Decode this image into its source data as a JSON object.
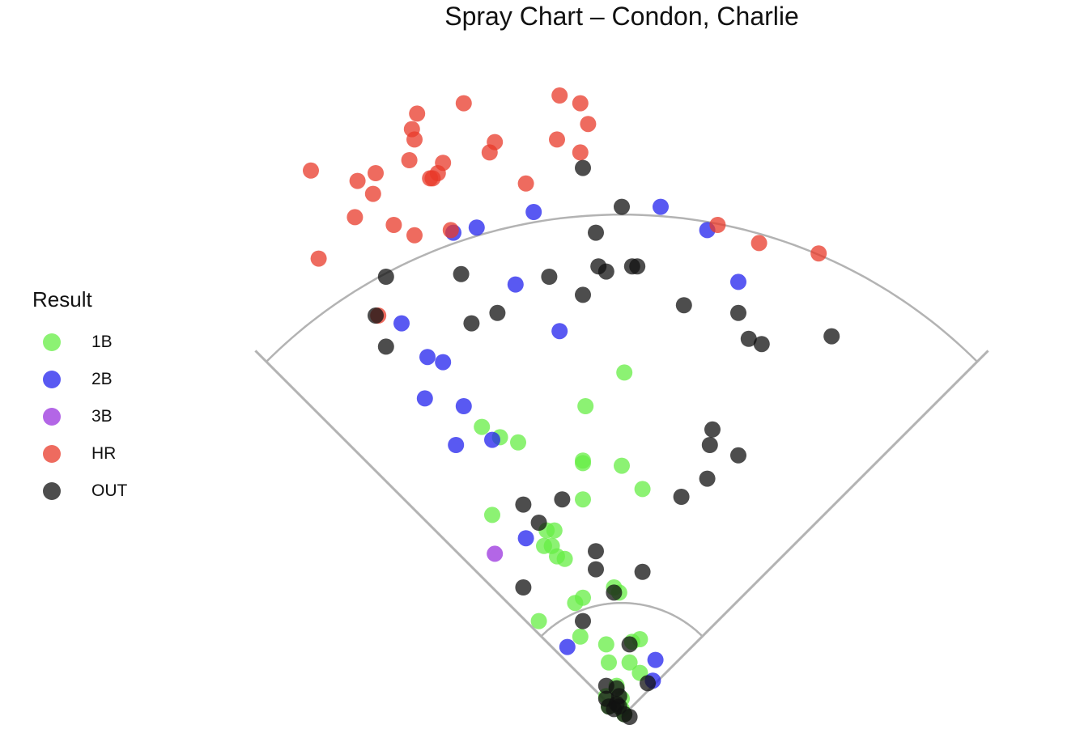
{
  "chart_data": {
    "type": "scatter",
    "title": "Spray Chart – Condon, Charlie",
    "legend": {
      "title": "Result",
      "placement": "left",
      "entries": [
        {
          "name": "1B",
          "color": "#66ee44"
        },
        {
          "name": "2B",
          "color": "#2222ee"
        },
        {
          "name": "3B",
          "color": "#9933dd"
        },
        {
          "name": "HR",
          "color": "#e83a2a"
        },
        {
          "name": "OUT",
          "color": "#111111"
        }
      ]
    },
    "x_range": [
      -140,
      140
    ],
    "y_range": [
      0,
      240
    ],
    "grid": false,
    "field": {
      "foul_line_length": 200,
      "outfield_arc_radius": 194,
      "infield_arc_radius": 44
    },
    "series": [
      {
        "name": "1B",
        "color": "#66ee44",
        "points": [
          [
            1,
            133
          ],
          [
            -14,
            120
          ],
          [
            -54,
            112
          ],
          [
            -47,
            108
          ],
          [
            -40,
            106
          ],
          [
            0,
            97
          ],
          [
            -15,
            99
          ],
          [
            -15,
            98
          ],
          [
            8,
            88
          ],
          [
            -15,
            84
          ],
          [
            -50,
            78
          ],
          [
            -29,
            72
          ],
          [
            -26,
            72
          ],
          [
            -30,
            66
          ],
          [
            -27,
            66
          ],
          [
            -25,
            62
          ],
          [
            -22,
            61
          ],
          [
            -3,
            50
          ],
          [
            -1,
            48
          ],
          [
            -15,
            46
          ],
          [
            -18,
            44
          ],
          [
            -32,
            37
          ],
          [
            -16,
            31
          ],
          [
            -6,
            28
          ],
          [
            7,
            30
          ],
          [
            4,
            29
          ],
          [
            -5,
            21
          ],
          [
            3,
            21
          ],
          [
            7,
            17
          ],
          [
            -2,
            12
          ],
          [
            -6,
            8
          ],
          [
            0,
            7
          ],
          [
            -5,
            4
          ],
          [
            0,
            3
          ],
          [
            1,
            1
          ]
        ]
      },
      {
        "name": "2B",
        "color": "#2222ee",
        "points": [
          [
            -34,
            195
          ],
          [
            -56,
            189
          ],
          [
            -65,
            187
          ],
          [
            15,
            197
          ],
          [
            33,
            188
          ],
          [
            45,
            168
          ],
          [
            -41,
            167
          ],
          [
            -85,
            152
          ],
          [
            -24,
            149
          ],
          [
            -75,
            139
          ],
          [
            -69,
            137
          ],
          [
            -76,
            123
          ],
          [
            -61,
            120
          ],
          [
            -64,
            105
          ],
          [
            -50,
            107
          ],
          [
            -37,
            69
          ],
          [
            -21,
            27
          ],
          [
            13,
            22
          ],
          [
            12,
            14
          ]
        ]
      },
      {
        "name": "3B",
        "color": "#9933dd",
        "points": [
          [
            -49,
            63
          ]
        ]
      },
      {
        "name": "HR",
        "color": "#e83a2a",
        "points": [
          [
            -24,
            240
          ],
          [
            -16,
            237
          ],
          [
            -79,
            233
          ],
          [
            -61,
            237
          ],
          [
            -81,
            227
          ],
          [
            -13,
            229
          ],
          [
            -49,
            222
          ],
          [
            -80,
            223
          ],
          [
            -51,
            218
          ],
          [
            -82,
            215
          ],
          [
            -25,
            223
          ],
          [
            -16,
            218
          ],
          [
            -69,
            214
          ],
          [
            -95,
            210
          ],
          [
            -71,
            210
          ],
          [
            -102,
            207
          ],
          [
            -120,
            211
          ],
          [
            -74,
            208
          ],
          [
            -73,
            208
          ],
          [
            -37,
            206
          ],
          [
            -96,
            202
          ],
          [
            -103,
            193
          ],
          [
            -88,
            190
          ],
          [
            -66,
            188
          ],
          [
            -80,
            186
          ],
          [
            37,
            190
          ],
          [
            53,
            183
          ],
          [
            76,
            179
          ],
          [
            -117,
            177
          ],
          [
            -94,
            155
          ]
        ]
      },
      {
        "name": "OUT",
        "color": "#111111",
        "points": [
          [
            -15,
            212
          ],
          [
            0,
            197
          ],
          [
            -10,
            187
          ],
          [
            -91,
            170
          ],
          [
            -62,
            171
          ],
          [
            -9,
            174
          ],
          [
            -6,
            172
          ],
          [
            -28,
            170
          ],
          [
            4,
            174
          ],
          [
            6,
            174
          ],
          [
            -15,
            163
          ],
          [
            24,
            159
          ],
          [
            -95,
            155
          ],
          [
            -48,
            156
          ],
          [
            -58,
            152
          ],
          [
            45,
            156
          ],
          [
            49,
            146
          ],
          [
            54,
            144
          ],
          [
            81,
            147
          ],
          [
            -91,
            143
          ],
          [
            35,
            111
          ],
          [
            34,
            105
          ],
          [
            45,
            101
          ],
          [
            33,
            92
          ],
          [
            -23,
            84
          ],
          [
            23,
            85
          ],
          [
            -38,
            82
          ],
          [
            -32,
            75
          ],
          [
            -10,
            64
          ],
          [
            -10,
            57
          ],
          [
            8,
            56
          ],
          [
            -38,
            50
          ],
          [
            -3,
            48
          ],
          [
            -15,
            37
          ],
          [
            3,
            28
          ],
          [
            10,
            13
          ],
          [
            -6,
            12
          ],
          [
            -2,
            11
          ],
          [
            -1,
            8
          ],
          [
            -6,
            7
          ],
          [
            -2,
            5
          ],
          [
            -5,
            4
          ],
          [
            -1,
            4
          ],
          [
            -3,
            3
          ],
          [
            1,
            1
          ],
          [
            3,
            0
          ]
        ]
      }
    ]
  }
}
